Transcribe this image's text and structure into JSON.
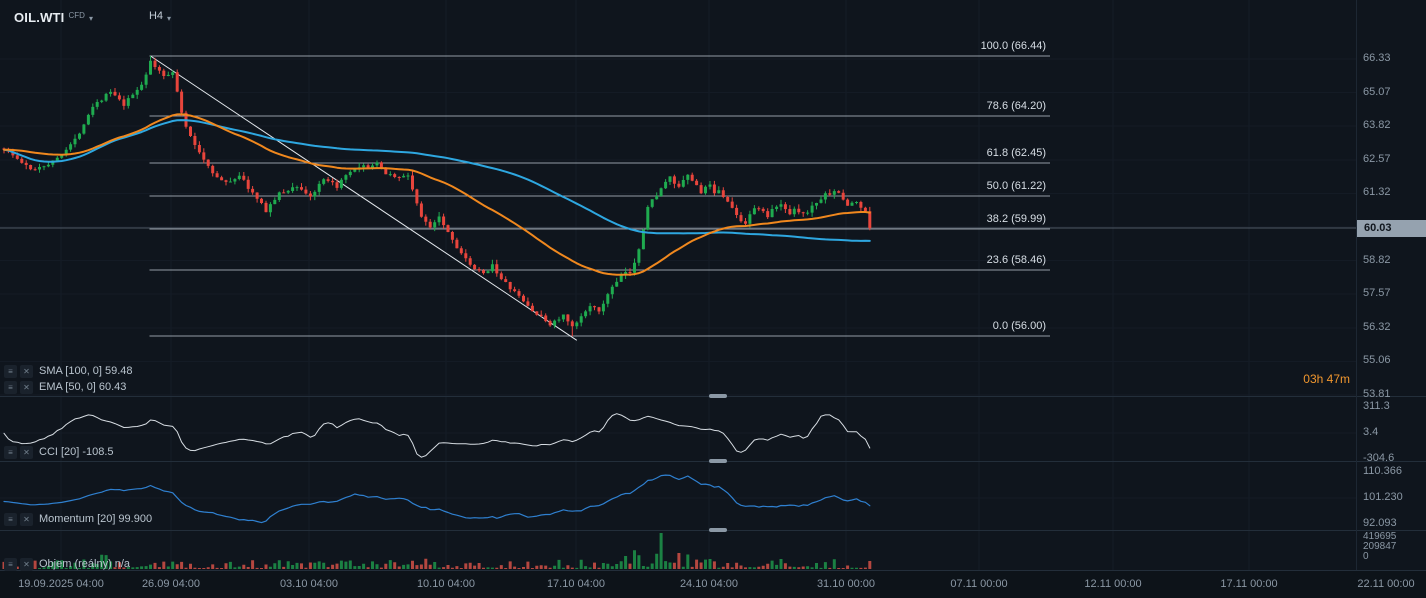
{
  "icons": {
    "chevron_down": "▾",
    "menu": "≡",
    "close": "✕"
  },
  "header": {
    "symbol": "OIL.WTI",
    "instrument_type": "CFD",
    "timeframe": "H4"
  },
  "timer": {
    "text": "03h 47m",
    "color": "#f0962e"
  },
  "price_axis": {
    "labels": [
      "66.33",
      "65.07",
      "63.82",
      "62.57",
      "61.32",
      "60.03",
      "58.82",
      "57.57",
      "56.32",
      "55.06",
      "53.81"
    ],
    "current_price": "60.03",
    "current_index": 5
  },
  "time_axis": {
    "labels": [
      "19.09.2025 04:00",
      "26.09 04:00",
      "03.10 04:00",
      "10.10 04:00",
      "17.10 04:00",
      "24.10 04:00",
      "31.10 00:00",
      "07.11 00:00",
      "12.11 00:00",
      "17.11 00:00",
      "22.11 00:00"
    ]
  },
  "chart_data": {
    "type": "candlestick",
    "symbol": "OIL.WTI",
    "timeframe": "H4",
    "visible_range": {
      "from": "19.09.2025 04:00",
      "to": "22.11 00:00"
    },
    "price_axis_visible": [
      53.81,
      66.33
    ],
    "num_candles": 196,
    "last_close": 60.03,
    "swing_high": {
      "index": 33,
      "price": 66.44
    },
    "swing_low": {
      "index": 128,
      "price": 56.0
    },
    "price_anchors": [
      [
        0,
        63.0
      ],
      [
        3,
        62.6
      ],
      [
        6,
        62.2
      ],
      [
        11,
        62.5
      ],
      [
        16,
        63.3
      ],
      [
        20,
        64.6
      ],
      [
        24,
        65.1
      ],
      [
        27,
        64.6
      ],
      [
        31,
        65.4
      ],
      [
        33,
        66.2
      ],
      [
        36,
        65.7
      ],
      [
        38,
        65.9
      ],
      [
        40,
        64.3
      ],
      [
        42,
        63.4
      ],
      [
        45,
        62.6
      ],
      [
        48,
        61.9
      ],
      [
        50,
        61.7
      ],
      [
        53,
        62.0
      ],
      [
        57,
        61.1
      ],
      [
        59,
        60.7
      ],
      [
        62,
        61.3
      ],
      [
        66,
        61.6
      ],
      [
        69,
        61.2
      ],
      [
        72,
        61.8
      ],
      [
        75,
        61.6
      ],
      [
        78,
        62.1
      ],
      [
        81,
        62.3
      ],
      [
        84,
        62.4
      ],
      [
        86,
        62.1
      ],
      [
        89,
        61.9
      ],
      [
        91,
        62.0
      ],
      [
        92,
        61.5
      ],
      [
        94,
        60.4
      ],
      [
        96,
        60.1
      ],
      [
        98,
        60.5
      ],
      [
        101,
        59.6
      ],
      [
        103,
        59.1
      ],
      [
        105,
        58.6
      ],
      [
        108,
        58.3
      ],
      [
        110,
        58.7
      ],
      [
        112,
        58.1
      ],
      [
        114,
        57.8
      ],
      [
        117,
        57.3
      ],
      [
        119,
        56.95
      ],
      [
        121,
        56.7
      ],
      [
        123,
        56.45
      ],
      [
        126,
        56.75
      ],
      [
        128,
        56.3
      ],
      [
        130,
        56.7
      ],
      [
        132,
        57.2
      ],
      [
        134,
        56.85
      ],
      [
        136,
        57.6
      ],
      [
        138,
        58.0
      ],
      [
        140,
        58.4
      ],
      [
        141,
        58.3
      ],
      [
        143,
        59.3
      ],
      [
        145,
        60.8
      ],
      [
        147,
        61.3
      ],
      [
        149,
        61.7
      ],
      [
        150,
        61.9
      ],
      [
        152,
        61.5
      ],
      [
        154,
        62.0
      ],
      [
        155,
        61.8
      ],
      [
        157,
        61.4
      ],
      [
        159,
        61.6
      ],
      [
        160,
        61.25
      ],
      [
        161,
        61.5
      ],
      [
        163,
        61.0
      ],
      [
        165,
        60.5
      ],
      [
        167,
        60.2
      ],
      [
        168,
        60.6
      ],
      [
        170,
        60.8
      ],
      [
        172,
        60.45
      ],
      [
        173,
        60.7
      ],
      [
        175,
        60.9
      ],
      [
        177,
        60.6
      ],
      [
        178,
        60.8
      ],
      [
        180,
        60.55
      ],
      [
        182,
        60.8
      ],
      [
        183,
        61.0
      ],
      [
        185,
        61.25
      ],
      [
        187,
        61.45
      ],
      [
        189,
        61.1
      ],
      [
        190,
        60.9
      ],
      [
        192,
        61.0
      ],
      [
        194,
        60.6
      ],
      [
        195,
        60.15
      ]
    ],
    "candle_colors": {
      "up": "#1fab4f",
      "down": "#e8453c"
    },
    "fib_retracement": {
      "x_start_index": 33,
      "levels": [
        {
          "pct": "100.0",
          "price": 66.44
        },
        {
          "pct": "78.6",
          "price": 64.2
        },
        {
          "pct": "61.8",
          "price": 62.45
        },
        {
          "pct": "50.0",
          "price": 61.22
        },
        {
          "pct": "38.2",
          "price": 59.99
        },
        {
          "pct": "23.6",
          "price": 58.46
        },
        {
          "pct": "0.0",
          "price": 56.0
        }
      ]
    },
    "trendline": {
      "from": {
        "index": 33,
        "price": 66.44
      },
      "to": {
        "index": 129,
        "price": 55.85
      }
    },
    "overlays": [
      {
        "name": "SMA",
        "label": "SMA [100, 0]",
        "period": 100,
        "value": "59.48",
        "color": "#2ea7e0"
      },
      {
        "name": "EMA",
        "label": "EMA [50, 0]",
        "period": 50,
        "value": "60.43",
        "color": "#f0881e"
      }
    ],
    "indicators": [
      {
        "name": "CCI",
        "label": "CCI [20]",
        "period": 20,
        "value": "-108.5",
        "color": "#d7dde3",
        "axis_labels": [
          "311.3",
          "3.4",
          "-304.6"
        ],
        "axis_values": [
          311.3,
          3.4,
          -304.6
        ]
      },
      {
        "name": "Momentum",
        "label": "Momentum [20]",
        "period": 20,
        "value": "99.900",
        "color": "#2f80d0",
        "axis_labels": [
          "110.366",
          "101.230",
          "92.093"
        ],
        "axis_values": [
          110.366,
          101.23,
          92.093
        ]
      },
      {
        "name": "Volume",
        "label": "Objem (reálny)",
        "value": "n/a",
        "colors": {
          "up": "#1c8746",
          "down": "#bf4a42"
        },
        "axis_labels": [
          "419695",
          "209847",
          "0"
        ],
        "axis_values": [
          419695,
          209847,
          0
        ],
        "spike": {
          "index": 148,
          "value": 419695
        }
      }
    ],
    "price_line": {
      "value": 60.03,
      "color": "#8b98a5"
    }
  },
  "colors": {
    "background": "#0f151d",
    "grid": "#151d27",
    "axis_text": "#8b98a5",
    "fib_line": "#aab4bd",
    "fib_label": "#d7dee5",
    "trendline": "#e4e9ee",
    "badge_bg": "#95a2af",
    "badge_text": "#10161d",
    "timer": "#f0962e",
    "separator": "#232e3a"
  }
}
